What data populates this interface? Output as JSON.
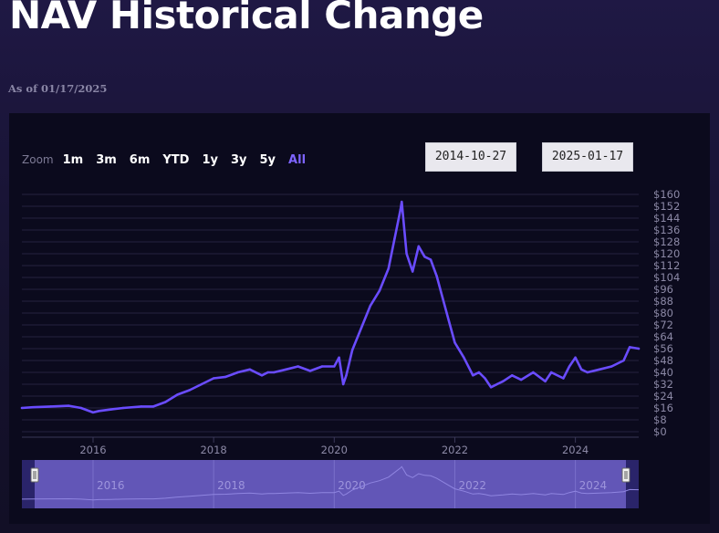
{
  "header": {
    "title": "NAV Historical Change",
    "as_of": "As of 01/17/2025"
  },
  "range_selector": {
    "zoom_label": "Zoom",
    "buttons": [
      "1m",
      "3m",
      "6m",
      "YTD",
      "1y",
      "3y",
      "5y",
      "All"
    ],
    "active": "All",
    "from_date": "2014-10-27",
    "to_date": "2025-01-17"
  },
  "colors": {
    "line": "#6a4cff",
    "active_button": "#7d64ff",
    "grid": "#24223f",
    "navigator_fill": "#6c5fc4"
  },
  "chart_data": {
    "type": "line",
    "title": "NAV Historical Change",
    "xlabel": "",
    "ylabel": "",
    "xlim": [
      2014.82,
      2025.05
    ],
    "ylim": [
      0,
      160
    ],
    "y_ticks": [
      "$0",
      "$8",
      "$16",
      "$24",
      "$32",
      "$40",
      "$48",
      "$56",
      "$64",
      "$72",
      "$80",
      "$88",
      "$96",
      "$104",
      "$112",
      "$120",
      "$128",
      "$136",
      "$144",
      "$152",
      "$160"
    ],
    "x_ticks": [
      "2016",
      "2018",
      "2020",
      "2022",
      "2024"
    ],
    "grid": true,
    "series": [
      {
        "x": [
          2014.82,
          2015.0,
          2015.3,
          2015.6,
          2015.8,
          2016.0,
          2016.1,
          2016.3,
          2016.5,
          2016.8,
          2017.0,
          2017.2,
          2017.4,
          2017.6,
          2017.8,
          2018.0,
          2018.2,
          2018.4,
          2018.6,
          2018.8,
          2018.9,
          2019.0,
          2019.2,
          2019.4,
          2019.6,
          2019.8,
          2020.0,
          2020.08,
          2020.15,
          2020.2,
          2020.3,
          2020.45,
          2020.6,
          2020.75,
          2020.9,
          2021.0,
          2021.1,
          2021.12,
          2021.2,
          2021.3,
          2021.4,
          2021.5,
          2021.6,
          2021.7,
          2021.8,
          2021.9,
          2022.0,
          2022.15,
          2022.3,
          2022.4,
          2022.5,
          2022.6,
          2022.7,
          2022.8,
          2022.95,
          2023.1,
          2023.3,
          2023.5,
          2023.6,
          2023.8,
          2023.9,
          2024.0,
          2024.1,
          2024.2,
          2024.4,
          2024.6,
          2024.8,
          2024.9,
          2025.05
        ],
        "y": [
          16,
          16.5,
          17,
          17.5,
          16,
          13,
          14,
          15,
          16,
          17,
          17,
          20,
          25,
          28,
          32,
          36,
          37,
          40,
          42,
          38,
          40,
          40,
          42,
          44,
          41,
          44,
          44,
          50,
          32,
          38,
          55,
          70,
          85,
          95,
          110,
          130,
          150,
          155,
          120,
          108,
          125,
          118,
          116,
          105,
          90,
          75,
          60,
          50,
          38,
          40,
          36,
          30,
          32,
          34,
          38,
          35,
          40,
          34,
          40,
          36,
          44,
          50,
          42,
          40,
          42,
          44,
          48,
          57,
          56
        ]
      }
    ]
  }
}
